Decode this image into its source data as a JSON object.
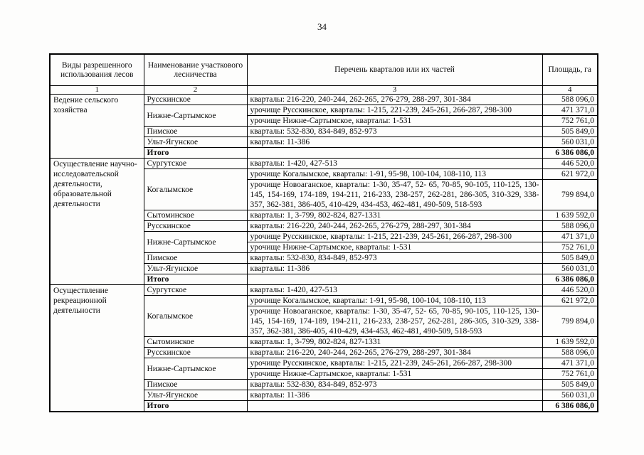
{
  "page": {
    "number": "34"
  },
  "table": {
    "headers": [
      "Виды разрешенного использования лесов",
      "Наименование участкового лесничества",
      "Перечень кварталов или их частей",
      "Площадь, га"
    ],
    "column_numbers": [
      "1",
      "2",
      "3",
      "4"
    ],
    "sections": [
      {
        "use_type": "Ведение сельского хозяйства",
        "rows": [
          {
            "forestry": "Русскинское",
            "rowspan": 1,
            "quarters": "кварталы: 216-220, 240-244, 262-265, 276-279, 288-297, 301-384",
            "area": "588 096,0"
          },
          {
            "forestry": "Нижне-Сартымское",
            "rowspan": 2,
            "quarters": "урочище Русскинское, кварталы: 1-215, 221-239, 245-261, 266-287, 298-300",
            "area": "471 371,0"
          },
          {
            "quarters": "урочище Нижне-Сартымское, кварталы: 1-531",
            "area": "752 761,0"
          },
          {
            "forestry": "Пимское",
            "rowspan": 1,
            "quarters": "кварталы: 532-830, 834-849, 852-973",
            "area": "505 849,0"
          },
          {
            "forestry": "Ульт-Ягунское",
            "rowspan": 1,
            "quarters": "кварталы: 11-386",
            "area": "560 031,0"
          },
          {
            "forestry": "Итого",
            "rowspan": 1,
            "total": true,
            "quarters": "",
            "area": "6 386 086,0"
          }
        ]
      },
      {
        "use_type": "Осуществление научно-исследовательской деятельности, образовательной деятельности",
        "rows": [
          {
            "forestry": "Сургутское",
            "rowspan": 1,
            "quarters": "кварталы: 1-420, 427-513",
            "area": "446 520,0"
          },
          {
            "forestry": "Когалымское",
            "rowspan": 2,
            "quarters": "урочище Когалымское, кварталы: 1-91, 95-98, 100-104, 108-110, 113",
            "area": "621 972,0"
          },
          {
            "quarters": "урочище Новоаганское, кварталы: 1-30, 35-47, 52- 65, 70-85, 90-105, 110-125, 130-145, 154-169, 174-189, 194-211, 216-233, 238-257, 262-281, 286-305, 310-329, 338-357, 362-381, 386-405, 410-429, 434-453, 462-481, 490-509, 518-593",
            "area": "799 894,0"
          },
          {
            "forestry": "Сытоминское",
            "rowspan": 1,
            "quarters": "кварталы: 1, 3-799, 802-824, 827-1331",
            "area": "1 639 592,0"
          },
          {
            "forestry": "Русскинское",
            "rowspan": 1,
            "quarters": "кварталы: 216-220, 240-244, 262-265, 276-279, 288-297, 301-384",
            "area": "588 096,0"
          },
          {
            "forestry": "Нижне-Сартымское",
            "rowspan": 2,
            "quarters": "урочище Русскинское, кварталы: 1-215, 221-239, 245-261, 266-287, 298-300",
            "area": "471 371,0"
          },
          {
            "quarters": "урочище Нижне-Сартымское, кварталы: 1-531",
            "area": "752 761,0"
          },
          {
            "forestry": "Пимское",
            "rowspan": 1,
            "quarters": "кварталы: 532-830, 834-849, 852-973",
            "area": "505 849,0"
          },
          {
            "forestry": "Ульт-Ягунское",
            "rowspan": 1,
            "quarters": "кварталы: 11-386",
            "area": "560 031,0"
          },
          {
            "forestry": "Итого",
            "rowspan": 1,
            "total": true,
            "quarters": "",
            "area": "6 386 086,0"
          }
        ]
      },
      {
        "use_type": "Осуществление рекреационной деятельности",
        "rows": [
          {
            "forestry": "Сургутское",
            "rowspan": 1,
            "quarters": "кварталы: 1-420, 427-513",
            "area": "446 520,0"
          },
          {
            "forestry": "Когалымское",
            "rowspan": 2,
            "quarters": "урочище Когалымское, кварталы: 1-91, 95-98, 100-104, 108-110, 113",
            "area": "621 972,0"
          },
          {
            "quarters": "урочище Новоаганское, кварталы: 1-30, 35-47, 52- 65, 70-85, 90-105, 110-125, 130-145, 154-169, 174-189, 194-211, 216-233, 238-257, 262-281, 286-305, 310-329, 338-357, 362-381, 386-405, 410-429, 434-453, 462-481, 490-509, 518-593",
            "area": "799 894,0"
          },
          {
            "forestry": "Сытоминское",
            "rowspan": 1,
            "quarters": "кварталы: 1, 3-799, 802-824, 827-1331",
            "area": "1 639 592,0"
          },
          {
            "forestry": "Русскинское",
            "rowspan": 1,
            "quarters": "кварталы: 216-220, 240-244, 262-265, 276-279, 288-297, 301-384",
            "area": "588 096,0"
          },
          {
            "forestry": "Нижне-Сартымское",
            "rowspan": 2,
            "quarters": "урочище Русскинское, кварталы: 1-215, 221-239, 245-261, 266-287, 298-300",
            "area": "471 371,0"
          },
          {
            "quarters": "урочище Нижне-Сартымское, кварталы: 1-531",
            "area": "752 761,0"
          },
          {
            "forestry": "Пимское",
            "rowspan": 1,
            "quarters": "кварталы: 532-830, 834-849, 852-973",
            "area": "505 849,0"
          },
          {
            "forestry": "Ульт-Ягунское",
            "rowspan": 1,
            "quarters": "кварталы: 11-386",
            "area": "560 031,0"
          },
          {
            "forestry": "Итого",
            "rowspan": 1,
            "total": true,
            "quarters": "",
            "area": "6 386 086,0"
          }
        ]
      }
    ]
  }
}
